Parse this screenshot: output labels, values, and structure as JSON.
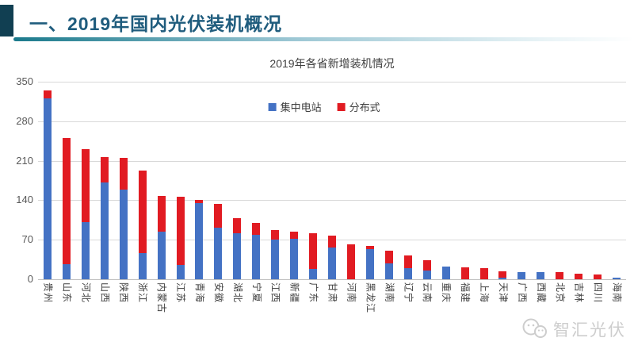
{
  "header": {
    "title": "一、2019年国内光伏装机概况"
  },
  "chart_data": {
    "type": "bar",
    "stacked": true,
    "title": "2019年各省新增装机情况",
    "categories": [
      "贵州",
      "山东",
      "河北",
      "山西",
      "陕西",
      "浙江",
      "内蒙古",
      "江苏",
      "青海",
      "安徽",
      "湖北",
      "宁夏",
      "江西",
      "新疆",
      "广东",
      "甘肃",
      "河南",
      "黑龙江",
      "湖南",
      "辽宁",
      "云南",
      "重庆",
      "福建",
      "上海",
      "天津",
      "广西",
      "西藏",
      "北京",
      "吉林",
      "四川",
      "海南"
    ],
    "series": [
      {
        "name": "集中电站",
        "color": "#4472c4",
        "values": [
          320,
          27,
          101,
          171,
          159,
          47,
          84,
          25,
          135,
          92,
          82,
          79,
          70,
          72,
          18,
          56,
          0,
          54,
          28,
          20,
          16,
          23,
          0,
          0,
          3,
          13,
          13,
          0,
          0,
          0,
          3
        ]
      },
      {
        "name": "分布式",
        "color": "#e11b22",
        "values": [
          14,
          223,
          130,
          46,
          56,
          145,
          63,
          121,
          6,
          42,
          26,
          21,
          17,
          13,
          64,
          21,
          62,
          5,
          22,
          22,
          18,
          0,
          21,
          19,
          11,
          0,
          0,
          12,
          10,
          8,
          0
        ]
      }
    ],
    "xlabel": "",
    "ylabel": "",
    "ylim": [
      0,
      350
    ],
    "yticks": [
      0,
      70,
      140,
      210,
      280,
      350
    ],
    "grid": true,
    "legend_position": "top-center-inside"
  },
  "watermark": {
    "text": "智汇光伏"
  },
  "colors": {
    "accent_bar": "#113f52",
    "header_title": "#1f5c7d",
    "rule_gradient_start": "#1b7a8c",
    "rule_gradient_end": "#ffffff",
    "gridline": "#d9d9d9",
    "axis_line": "#bfbfbf",
    "tick_text": "#595959",
    "label_text": "#404040",
    "watermark_text": "#cdcdcd"
  }
}
